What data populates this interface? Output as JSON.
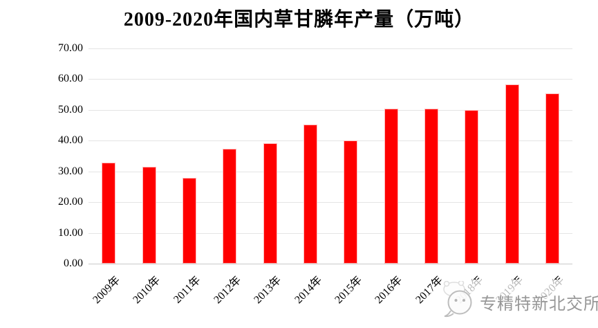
{
  "chart_data": {
    "type": "bar",
    "title": "2009-2020年国内草甘膦年产量（万吨）",
    "categories": [
      "2009年",
      "2010年",
      "2011年",
      "2012年",
      "2013年",
      "2014年",
      "2015年",
      "2016年",
      "2017年",
      "2018年",
      "2019年",
      "2020年"
    ],
    "values": [
      32.8,
      31.5,
      28.0,
      37.3,
      39.1,
      45.2,
      40.1,
      50.5,
      50.5,
      49.9,
      58.3,
      55.3
    ],
    "xlabel": "",
    "ylabel": "",
    "ylim": [
      0,
      70
    ],
    "ytick_step": 10,
    "ytick_labels_top_to_bottom": [
      "70.00",
      "60.00",
      "50.00",
      "40.00",
      "30.00",
      "20.00",
      "10.00",
      "0.00"
    ],
    "x_tick_rotation_deg": -45,
    "grid": true,
    "legend": "none",
    "colors": {
      "bar": "#FF0000",
      "bar_edge": "#FFB9B9",
      "gridline": "#E4E4E4",
      "baseline": "#C9C9C9",
      "text": "#000000"
    }
  },
  "watermark": {
    "icon": "chat-face-icon",
    "text": "专精特新北交所",
    "text_color": "#979797"
  }
}
